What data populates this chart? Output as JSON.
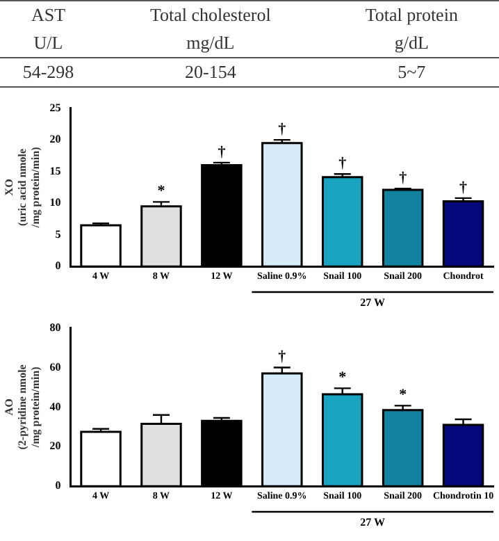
{
  "chart_data": [
    {
      "type": "other",
      "annotations": [
        "AST",
        "Total  cholesterol",
        "Total  protein",
        "U/L",
        "mg/dL",
        "g/dL",
        "54-298",
        "20-154",
        "5~7"
      ]
    },
    {
      "type": "bar",
      "ylabel": "XO\n(uric acid nmole\n/mg protein/min)",
      "categories": [
        "4 W",
        "8 W",
        "12 W",
        "Saline 0.9%",
        "Snail 100",
        "Snail 200",
        "Chondrot"
      ],
      "values": [
        6.5,
        9.5,
        16,
        19.5,
        14.1,
        12.1,
        10.3
      ],
      "errors": [
        0.3,
        0.7,
        0.4,
        0.5,
        0.5,
        0.2,
        0.5
      ],
      "colors": [
        "#ffffff",
        "#e0e0e0",
        "#000000",
        "#d6ecfa",
        "#1aa3c0",
        "#13829f",
        "#04087a"
      ],
      "ylim": [
        0,
        25
      ],
      "yticks": [
        0,
        5,
        10,
        15,
        20,
        25
      ],
      "grid": false,
      "legend": false,
      "annotations": [
        "27 W",
        {
          "text": "*",
          "x": "8 W",
          "y": 10.2
        },
        {
          "text": "†",
          "x": "12 W",
          "y": 16.4
        },
        {
          "text": "†",
          "x": "Saline 0.9%",
          "y": 20
        },
        {
          "text": "†",
          "x": "Snail 100",
          "y": 14.6
        },
        {
          "text": "†",
          "x": "Snail 200",
          "y": 12.3
        },
        {
          "text": "†",
          "x": "Chondrot",
          "y": 10.8
        }
      ]
    },
    {
      "type": "bar",
      "ylabel": "AO\n(2-pyridine nmole\n/mg protein/min)",
      "categories": [
        "4 W",
        "8 W",
        "12 W",
        "Saline 0.9%",
        "Snail 100",
        "Snail 200",
        "Chondrotin 10"
      ],
      "values": [
        27.5,
        31.5,
        33,
        57,
        46.5,
        38.5,
        31
      ],
      "errors": [
        1.5,
        4.5,
        1.5,
        3,
        3,
        2.2,
        2.8
      ],
      "colors": [
        "#ffffff",
        "#e0e0e0",
        "#000000",
        "#d6ecfa",
        "#1aa3c0",
        "#13829f",
        "#04087a"
      ],
      "ylim": [
        0,
        80
      ],
      "yticks": [
        0,
        20,
        40,
        60,
        80
      ],
      "grid": false,
      "legend": false,
      "annotations": [
        "27 W",
        {
          "text": "†",
          "x": "Saline 0.9%",
          "y": 60
        },
        {
          "text": "*",
          "x": "Snail 100",
          "y": 49.5
        },
        {
          "text": "*",
          "x": "Snail 200",
          "y": 40.7
        }
      ]
    }
  ]
}
